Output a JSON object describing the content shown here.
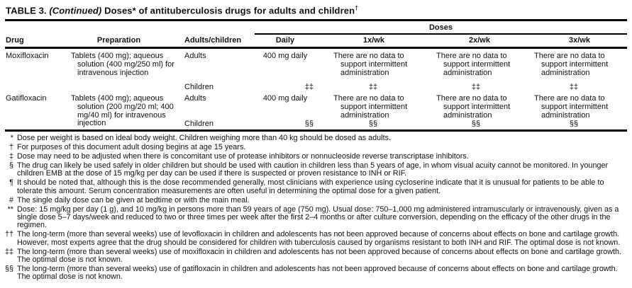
{
  "title": {
    "table_label": "TABLE 3.",
    "continued": "(Continued)",
    "main": "Doses* of antituberculosis drugs for adults and children",
    "footnote_symbol": "†"
  },
  "header": {
    "doses_group": "Doses",
    "col_drug": "Drug",
    "col_preparation": "Preparation",
    "col_adults_children": "Adults/children",
    "col_daily": "Daily",
    "col_1xwk": "1x/wk",
    "col_2xwk": "2x/wk",
    "col_3xwk": "3x/wk"
  },
  "rows": [
    {
      "drug": "Moxifloxacin",
      "preparation": "Tablets (400 mg); aqueous solution (400 mg/250 ml) for intravenous injection",
      "adults_label": "Adults",
      "children_label": "Children",
      "daily_adults": "400 mg daily",
      "daily_children_symbol": "‡‡",
      "wk1_adults": "There are no data to support intermittent administration",
      "wk1_children_symbol": "‡‡",
      "wk2_adults": "There are no data to support intermittent administration",
      "wk2_children_symbol": "‡‡",
      "wk3_adults": "There are no data to support intermittent administration",
      "wk3_children_symbol": "‡‡"
    },
    {
      "drug": "Gatifloxacin",
      "preparation": "Tablets (400 mg); aqueous solution (200 mg/20 ml; 400 mg/40 ml) for intravenous injection",
      "adults_label": "Adults",
      "children_label": "Children",
      "daily_adults": "400 mg daily",
      "daily_children_symbol": "§§",
      "wk1_adults": "There are no data to support intermittent administration",
      "wk1_children_symbol": "§§",
      "wk2_adults": "There are no data to support intermittent administration",
      "wk2_children_symbol": "§§",
      "wk3_adults": "There are no data to support intermittent administration",
      "wk3_children_symbol": "§§"
    }
  ],
  "footnotes": [
    {
      "marker": "*",
      "text": "Dose per weight is based on ideal body weight. Children weighing more than 40 kg should be dosed as adults."
    },
    {
      "marker": "†",
      "text": "For purposes of this document adult dosing begins at age 15 years."
    },
    {
      "marker": "‡",
      "text": "Dose may need to be adjusted when there is concomitant use of protease inhibitors or nonnucleoside reverse transcriptase inhibitors."
    },
    {
      "marker": "§",
      "text": "The drug can likely be used safely in older children but should be used with caution in children less than 5 years of age, in whom visual acuity cannot be monitored. In younger children EMB at the dose of 15 mg/kg per day can be used if there is suspected or proven resistance to INH or RIF."
    },
    {
      "marker": "¶",
      "text": "It should be noted that, although this is the dose recommended generally, most clinicians with experience using cycloserine indicate that it is unusual for patients to be able to tolerate this amount. Serum concentration measurements are often useful in determining the optimal dose for a given patient."
    },
    {
      "marker": "#",
      "text": "The single daily dose can be given at bedtime or with the main meal."
    },
    {
      "marker": "**",
      "text": "Dose: 15 mg/kg per day (1 g), and 10 mg/kg in persons more than 59 years of age (750 mg). Usual dose: 750–1,000 mg administered intramuscularly or intravenously, given as a single dose 5–7 days/week and reduced to two or three times per week after the first 2–4 months or after culture conversion, depending on the efficacy of the other drugs in the regimen."
    },
    {
      "marker": "††",
      "text": "The long-term (more than several weeks) use of levofloxacin in children and adolescents has not been approved because of concerns about effects on bone and cartilage growth. However, most experts agree that the drug should be considered for children with tuberculosis caused by organisms resistant to both INH and RIF. The optimal dose is not known."
    },
    {
      "marker": "‡‡",
      "text": "The long-term (more than several weeks) use of moxifloxacin in children and adolescents has not been approved because of concerns about effects on bone and cartilage growth. The optimal dose is not known."
    },
    {
      "marker": "§§",
      "text": "The long-term (more than several weeks) use of gatifloxacin in children and adolescents has not been approved because of concerns about effects on bone and cartilage growth. The optimal dose is not known."
    }
  ]
}
